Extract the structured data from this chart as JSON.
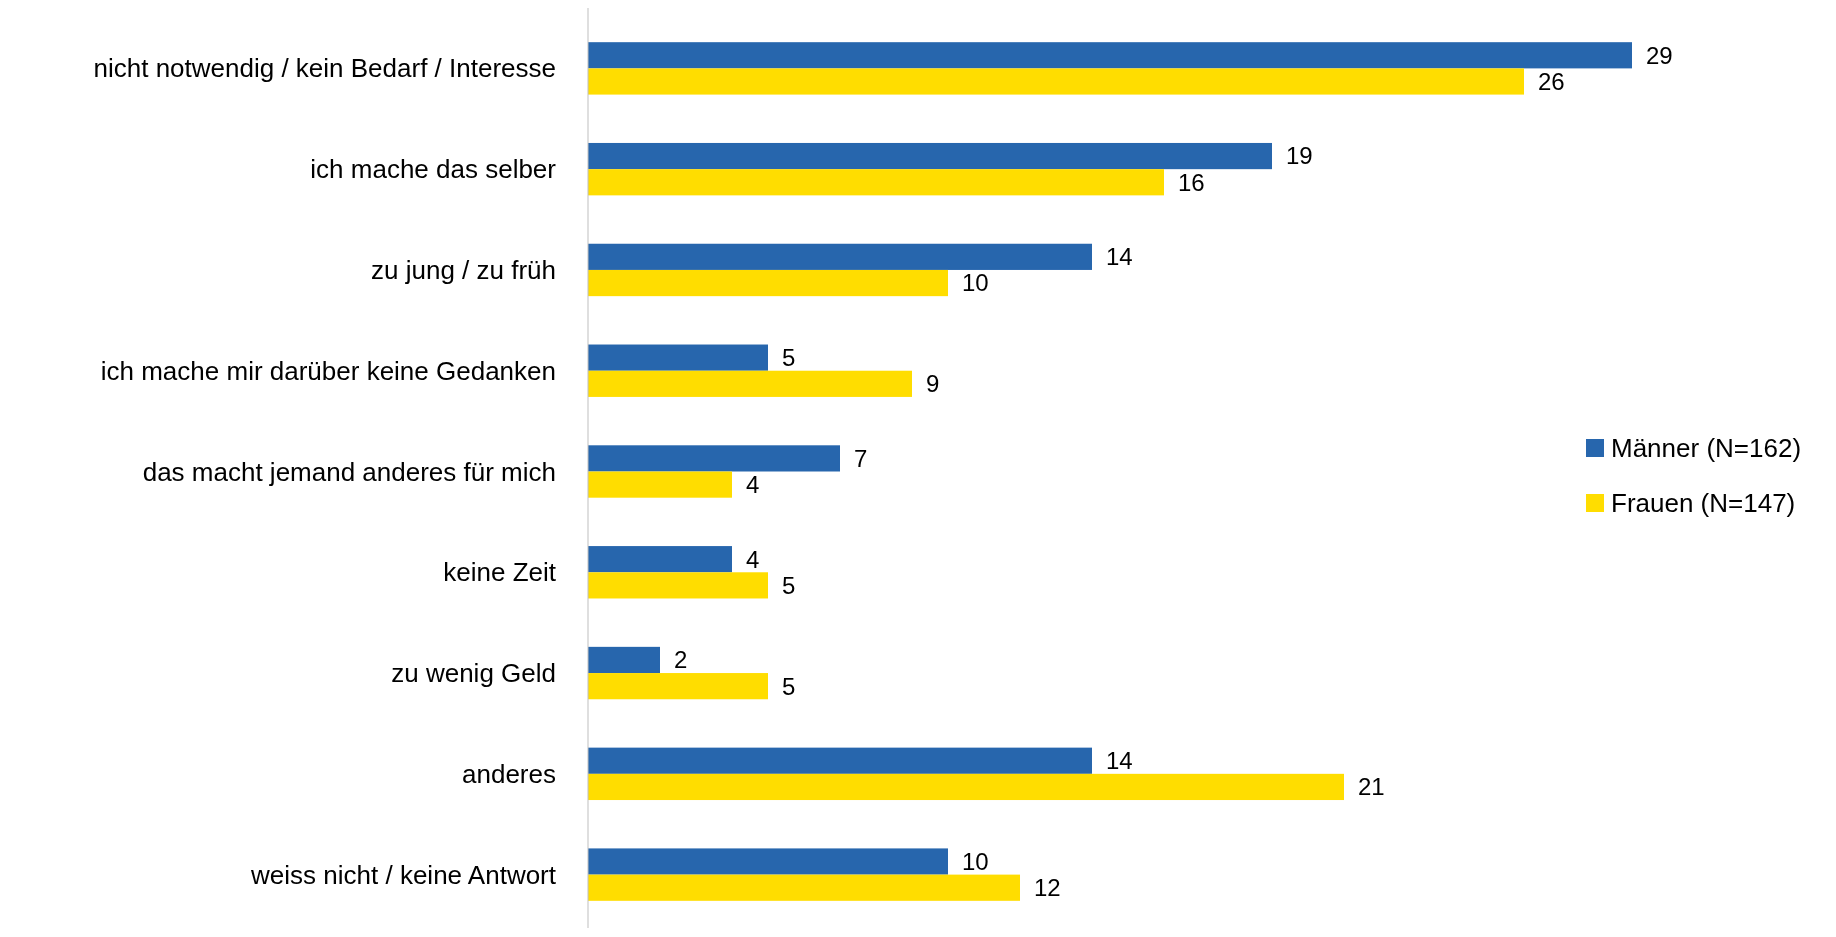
{
  "chart_data": {
    "type": "bar",
    "orientation": "horizontal",
    "categories": [
      "nicht notwendig / kein Bedarf / Interesse",
      "ich mache das selber",
      "zu jung / zu früh",
      "ich mache mir darüber keine Gedanken",
      "das macht jemand anderes für mich",
      "keine Zeit",
      "zu wenig Geld",
      "anderes",
      "weiss nicht / keine Antwort"
    ],
    "series": [
      {
        "name": "Männer (N=162)",
        "color": "#2766ad",
        "values": [
          29,
          19,
          14,
          5,
          7,
          4,
          2,
          14,
          10
        ]
      },
      {
        "name": "Frauen (N=147)",
        "color": "#ffdd00",
        "values": [
          26,
          16,
          10,
          9,
          4,
          5,
          5,
          21,
          12
        ]
      }
    ],
    "data_labels": true,
    "legend": "right"
  }
}
